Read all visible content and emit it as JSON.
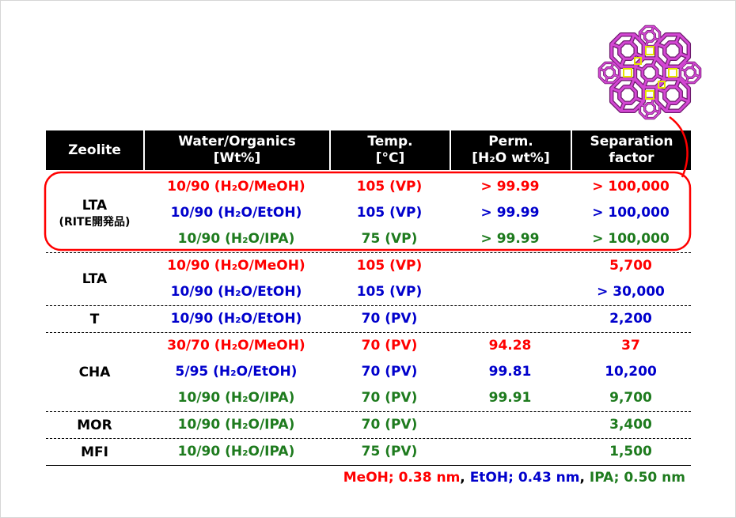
{
  "colors": {
    "red": "#ff0000",
    "blue": "#0000cc",
    "green": "#1e7b1e",
    "black": "#000000",
    "header_bg": "#000000",
    "header_text": "#ffffff",
    "highlight": "#ff0000"
  },
  "header": {
    "zeolite": "Zeolite",
    "water_organics": "Water/Organics",
    "water_organics_unit": "[Wt%]",
    "temp": "Temp.",
    "temp_unit": "[°C]",
    "perm": "Perm.",
    "perm_unit": "[H₂O wt%]",
    "separation_line1": "Separation",
    "separation_line2": "factor"
  },
  "groups": [
    {
      "zeolite": "LTA",
      "note": "(RITE開発品)",
      "highlighted": true,
      "rows": [
        {
          "color": "red",
          "water_organics": "10/90 (H₂O/MeOH)",
          "temp": "105 (VP)",
          "perm": "> 99.99",
          "separation_factor": "> 100,000"
        },
        {
          "color": "blue",
          "water_organics": "10/90 (H₂O/EtOH)",
          "temp": "105 (VP)",
          "perm": "> 99.99",
          "separation_factor": "> 100,000"
        },
        {
          "color": "green",
          "water_organics": "10/90 (H₂O/IPA)",
          "temp": "75 (VP)",
          "perm": "> 99.99",
          "separation_factor": "> 100,000"
        }
      ]
    },
    {
      "zeolite": "LTA",
      "rows": [
        {
          "color": "red",
          "water_organics": "10/90 (H₂O/MeOH)",
          "temp": "105 (VP)",
          "separation_factor": "5,700"
        },
        {
          "color": "blue",
          "water_organics": "10/90 (H₂O/EtOH)",
          "temp": "105 (VP)",
          "separation_factor": "> 30,000"
        }
      ]
    },
    {
      "zeolite": "T",
      "rows": [
        {
          "color": "blue",
          "water_organics": "10/90 (H₂O/EtOH)",
          "temp": "70 (PV)",
          "separation_factor": "2,200"
        }
      ]
    },
    {
      "zeolite": "CHA",
      "rows": [
        {
          "color": "red",
          "water_organics": "30/70 (H₂O/MeOH)",
          "temp": "70 (PV)",
          "perm": "94.28",
          "separation_factor": "37"
        },
        {
          "color": "blue",
          "water_organics": "5/95 (H₂O/EtOH)",
          "temp": "70 (PV)",
          "perm": "99.81",
          "separation_factor": "10,200"
        },
        {
          "color": "green",
          "water_organics": "10/90 (H₂O/IPA)",
          "temp": "70 (PV)",
          "perm": "99.91",
          "separation_factor": "9,700"
        }
      ]
    },
    {
      "zeolite": "MOR",
      "rows": [
        {
          "color": "green",
          "water_organics": "10/90 (H₂O/IPA)",
          "temp": "70 (PV)",
          "separation_factor": "3,400"
        }
      ]
    },
    {
      "zeolite": "MFI",
      "rows": [
        {
          "color": "green",
          "water_organics": "10/90 (H₂O/IPA)",
          "temp": "75 (PV)",
          "separation_factor": "1,500"
        }
      ]
    }
  ],
  "footnote": [
    {
      "text": "MeOH; 0.38 nm",
      "color": "red"
    },
    {
      "text": ", ",
      "color": "black"
    },
    {
      "text": "EtOH; 0.43 nm",
      "color": "blue"
    },
    {
      "text": ", ",
      "color": "black"
    },
    {
      "text": "IPA; 0.50 nm",
      "color": "green"
    }
  ]
}
